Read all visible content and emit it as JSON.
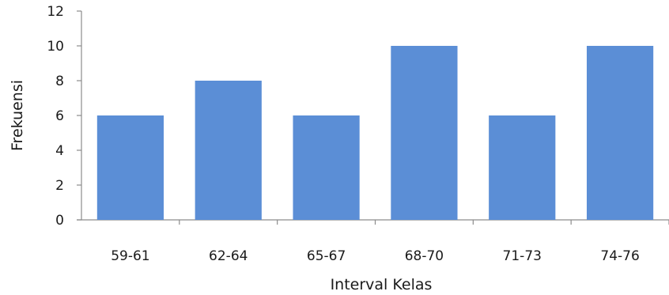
{
  "chart_data": {
    "type": "bar",
    "categories": [
      "59-61",
      "62-64",
      "65-67",
      "68-70",
      "71-73",
      "74-76"
    ],
    "values": [
      6,
      8,
      6,
      10,
      6,
      10
    ],
    "title": "",
    "xlabel": "Interval Kelas",
    "ylabel": "Frekuensi",
    "ylim": [
      0,
      12
    ],
    "yticks": [
      0,
      2,
      4,
      6,
      8,
      10,
      12
    ],
    "grid": false,
    "legend": "none",
    "bar_color": "#5b8ed6"
  }
}
